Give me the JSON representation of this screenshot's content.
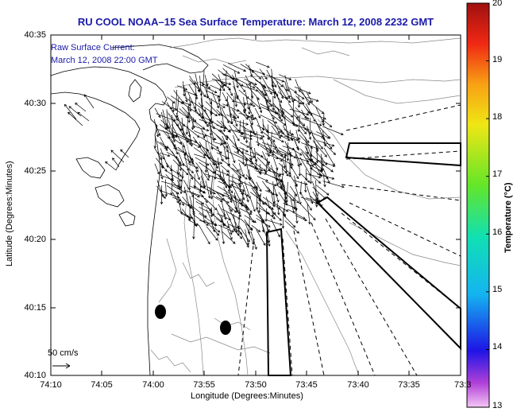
{
  "title": "RU COOL  NOAA–15  Sea Surface Temperature:  March 12, 2008 2232 GMT",
  "annotation": {
    "line1": "Raw Surface Current:",
    "line2": "March 12, 2008 22:00 GMT"
  },
  "axes": {
    "xlabel": "Longitude (Degrees:Minutes)",
    "ylabel": "Latitude (Degrees:Minutes)",
    "xticks": [
      "74:10",
      "74:05",
      "74:00",
      "73:55",
      "73:50",
      "73:45",
      "73:40",
      "73:35",
      "73:3"
    ],
    "yticks": [
      "40:35",
      "40:30",
      "40:25",
      "40:20",
      "40:15",
      "40:10"
    ]
  },
  "scale": {
    "label": "50 cm/s"
  },
  "colorbar": {
    "label": "Temperature (°C)",
    "ticks": [
      "20",
      "19",
      "18",
      "17",
      "16",
      "15",
      "14",
      "13"
    ],
    "min": 13,
    "max": 20
  }
}
